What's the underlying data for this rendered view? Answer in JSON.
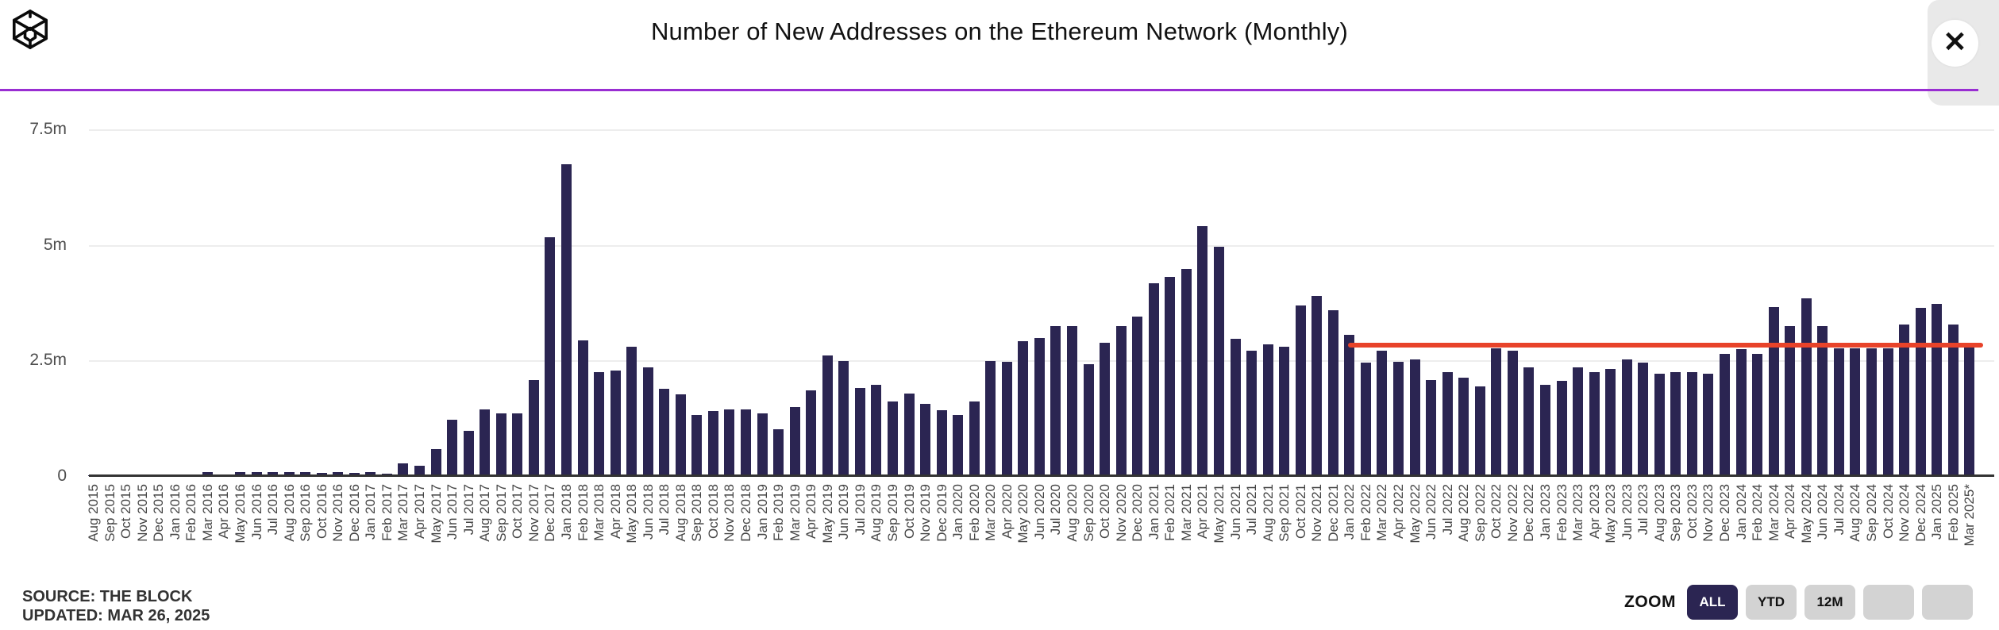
{
  "header": {
    "title": "Number of New Addresses on the Ethereum Network (Monthly)",
    "logo": "the-block-logo",
    "close_label": "✕"
  },
  "footer": {
    "source": "SOURCE: THE BLOCK",
    "updated": "UPDATED: MAR 26, 2025"
  },
  "zoom_controls": {
    "label": "ZOOM",
    "buttons": [
      {
        "label": "ALL",
        "active": true
      },
      {
        "label": "YTD",
        "active": false
      },
      {
        "label": "12M",
        "active": false
      },
      {
        "label": "",
        "active": false
      },
      {
        "label": "",
        "active": false
      }
    ]
  },
  "colors": {
    "bar": "#2b2552",
    "reference_line": "#e8432a",
    "purple_rule": "#992ed2",
    "gridline": "#ededed",
    "axis": "#333333",
    "active_button": "#2b2552",
    "inactive_button": "#d3d3d3"
  },
  "chart_data": {
    "type": "bar",
    "title": "Number of New Addresses on the Ethereum Network (Monthly)",
    "xlabel": "",
    "ylabel": "",
    "unit": "millions of addresses",
    "ylim": [
      0,
      7.9
    ],
    "grid": true,
    "yticks": [
      {
        "value": 7.5,
        "label": "7.5m"
      },
      {
        "value": 5.0,
        "label": "5m"
      },
      {
        "value": 2.5,
        "label": "2.5m"
      },
      {
        "value": 0,
        "label": "0"
      }
    ],
    "categories": [
      "Aug 2015",
      "Sep 2015",
      "Oct 2015",
      "Nov 2015",
      "Dec 2015",
      "Jan 2016",
      "Feb 2016",
      "Mar 2016",
      "Apr 2016",
      "May 2016",
      "Jun 2016",
      "Jul 2016",
      "Aug 2016",
      "Sep 2016",
      "Oct 2016",
      "Nov 2016",
      "Dec 2016",
      "Jan 2017",
      "Feb 2017",
      "Mar 2017",
      "Apr 2017",
      "May 2017",
      "Jun 2017",
      "Jul 2017",
      "Aug 2017",
      "Sep 2017",
      "Oct 2017",
      "Nov 2017",
      "Dec 2017",
      "Jan 2018",
      "Feb 2018",
      "Mar 2018",
      "Apr 2018",
      "May 2018",
      "Jun 2018",
      "Jul 2018",
      "Aug 2018",
      "Sep 2018",
      "Oct 2018",
      "Nov 2018",
      "Dec 2018",
      "Jan 2019",
      "Feb 2019",
      "Mar 2019",
      "Apr 2019",
      "May 2019",
      "Jun 2019",
      "Jul 2019",
      "Aug 2019",
      "Sep 2019",
      "Oct 2019",
      "Nov 2019",
      "Dec 2019",
      "Jan 2020",
      "Feb 2020",
      "Mar 2020",
      "Apr 2020",
      "May 2020",
      "Jun 2020",
      "Jul 2020",
      "Aug 2020",
      "Sep 2020",
      "Oct 2020",
      "Nov 2020",
      "Dec 2020",
      "Jan 2021",
      "Feb 2021",
      "Mar 2021",
      "Apr 2021",
      "May 2021",
      "Jun 2021",
      "Jul 2021",
      "Aug 2021",
      "Sep 2021",
      "Oct 2021",
      "Nov 2021",
      "Dec 2021",
      "Jan 2022",
      "Feb 2022",
      "Mar 2022",
      "Apr 2022",
      "May 2022",
      "Jun 2022",
      "Jul 2022",
      "Aug 2022",
      "Sep 2022",
      "Oct 2022",
      "Nov 2022",
      "Dec 2022",
      "Jan 2023",
      "Feb 2023",
      "Mar 2023",
      "Apr 2023",
      "May 2023",
      "Jun 2023",
      "Jul 2023",
      "Aug 2023",
      "Sep 2023",
      "Oct 2023",
      "Nov 2023",
      "Dec 2023",
      "Jan 2024",
      "Feb 2024",
      "Mar 2024",
      "Apr 2024",
      "May 2024",
      "Jun 2024",
      "Jul 2024",
      "Aug 2024",
      "Sep 2024",
      "Oct 2024",
      "Nov 2024",
      "Dec 2024",
      "Jan 2025",
      "Feb 2025",
      "Mar 2025*"
    ],
    "values": [
      0.01,
      0.01,
      0.01,
      0.01,
      0.01,
      0.02,
      0.03,
      0.08,
      0.03,
      0.08,
      0.09,
      0.08,
      0.08,
      0.08,
      0.07,
      0.08,
      0.07,
      0.08,
      0.06,
      0.28,
      0.23,
      0.59,
      1.22,
      0.98,
      1.44,
      1.36,
      1.36,
      2.08,
      5.17,
      6.74,
      2.93,
      2.25,
      2.28,
      2.8,
      2.35,
      1.88,
      1.77,
      1.32,
      1.4,
      1.44,
      1.44,
      1.35,
      1.02,
      1.49,
      1.85,
      2.61,
      2.49,
      1.91,
      1.98,
      1.61,
      1.78,
      1.56,
      1.42,
      1.32,
      1.61,
      2.49,
      2.47,
      2.91,
      2.98,
      3.24,
      3.24,
      2.42,
      2.88,
      3.25,
      3.45,
      4.17,
      4.31,
      4.48,
      5.41,
      4.96,
      2.97,
      2.71,
      2.84,
      2.8,
      3.69,
      3.9,
      3.58,
      3.05,
      2.45,
      2.71,
      2.47,
      2.53,
      2.08,
      2.25,
      2.12,
      1.93,
      2.76,
      2.71,
      2.35,
      1.98,
      2.05,
      2.35,
      2.24,
      2.31,
      2.52,
      2.45,
      2.22,
      2.25,
      2.25,
      2.22,
      2.65,
      2.75,
      2.65,
      3.66,
      3.24,
      3.84,
      3.24,
      2.76,
      2.76,
      2.76,
      2.76,
      3.28,
      3.63,
      3.72,
      3.28,
      2.8
    ],
    "reference_line": {
      "value": 2.83,
      "start_category": "Jan 2022",
      "end_category": "Mar 2025*",
      "color": "#e8432a"
    },
    "legend": null
  }
}
